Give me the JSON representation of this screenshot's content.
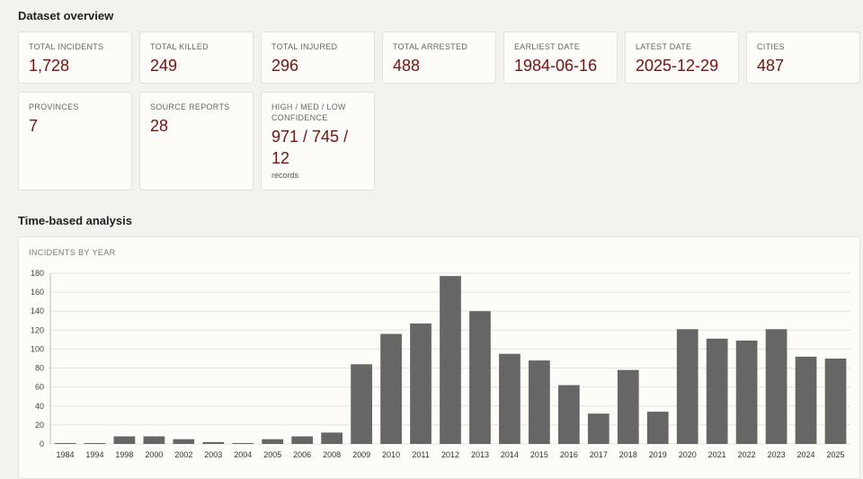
{
  "overview": {
    "title": "Dataset overview",
    "cards": [
      {
        "label": "TOTAL INCIDENTS",
        "value": "1,728"
      },
      {
        "label": "TOTAL KILLED",
        "value": "249"
      },
      {
        "label": "TOTAL INJURED",
        "value": "296"
      },
      {
        "label": "TOTAL ARRESTED",
        "value": "488"
      },
      {
        "label": "EARLIEST DATE",
        "value": "1984-06-16"
      },
      {
        "label": "LATEST DATE",
        "value": "2025-12-29"
      },
      {
        "label": "CITIES",
        "value": "487"
      },
      {
        "label": "PROVINCES",
        "value": "7"
      },
      {
        "label": "SOURCE REPORTS",
        "value": "28"
      },
      {
        "label": "HIGH / MED / LOW CONFIDENCE",
        "value": "971 / 745 / 12",
        "sub": "records"
      }
    ]
  },
  "time_analysis": {
    "title": "Time-based analysis",
    "chart_title": "INCIDENTS BY YEAR"
  },
  "colors": {
    "bar": "#666666",
    "value": "#7a1010",
    "grid": "#e6e4df"
  },
  "chart_data": {
    "type": "bar",
    "title": "INCIDENTS BY YEAR",
    "categories": [
      "1984",
      "1994",
      "1998",
      "2000",
      "2002",
      "2003",
      "2004",
      "2005",
      "2006",
      "2008",
      "2009",
      "2010",
      "2011",
      "2012",
      "2013",
      "2014",
      "2015",
      "2016",
      "2017",
      "2018",
      "2019",
      "2020",
      "2021",
      "2022",
      "2023",
      "2024",
      "2025"
    ],
    "values": [
      1,
      1,
      8,
      8,
      5,
      2,
      1,
      5,
      8,
      12,
      84,
      116,
      127,
      177,
      140,
      95,
      88,
      62,
      32,
      78,
      34,
      121,
      111,
      109,
      121,
      92,
      90
    ],
    "ylim": [
      0,
      180
    ],
    "yticks": [
      0,
      20,
      40,
      60,
      80,
      100,
      120,
      140,
      160,
      180
    ],
    "grid": true
  }
}
